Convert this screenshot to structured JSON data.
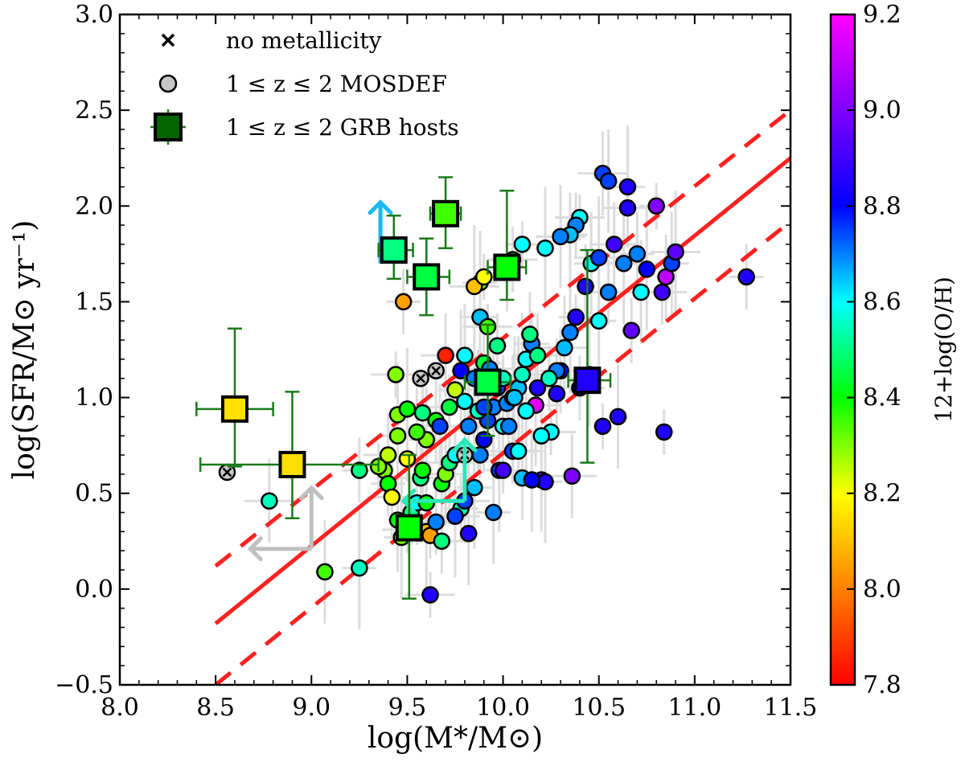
{
  "chart_data": {
    "type": "scatter",
    "xlabel": "log(M*/M⊙)",
    "ylabel": "log(SFR/M⊙ yr⁻¹)",
    "xlim": [
      8.0,
      11.5
    ],
    "ylim": [
      -0.5,
      3.0
    ],
    "xticks": [
      "8.0",
      "8.5",
      "9.0",
      "9.5",
      "10.0",
      "10.5",
      "11.0",
      "11.5"
    ],
    "yticks": [
      "−0.5",
      "0.0",
      "0.5",
      "1.0",
      "1.5",
      "2.0",
      "2.5",
      "3.0"
    ],
    "colorbar": {
      "label": "12+log(O/H)",
      "range": [
        7.8,
        9.2
      ],
      "ticks": [
        "7.8",
        "8.0",
        "8.2",
        "8.4",
        "8.6",
        "8.8",
        "9.0",
        "9.2"
      ],
      "colormap": [
        "#ff0000",
        "#ff8000",
        "#ffff00",
        "#00ff00",
        "#00ffff",
        "#0000ff",
        "#8000ff",
        "#ff00ff"
      ]
    },
    "legend": {
      "placement": "top-left",
      "entries": [
        {
          "marker": "x",
          "label": "no metallicity"
        },
        {
          "marker": "circle",
          "label": "1 ≤ z ≤ 2 MOSDEF"
        },
        {
          "marker": "square",
          "label": "1 ≤ z ≤ 2 GRB hosts"
        }
      ]
    },
    "lines": {
      "main_sequence": {
        "x": [
          8.5,
          11.5
        ],
        "y": [
          -0.18,
          2.25
        ],
        "color": "#ff2020",
        "style": "solid"
      },
      "upper_scatter": {
        "x": [
          8.5,
          11.5
        ],
        "y": [
          0.12,
          2.5
        ],
        "color": "#ff2020",
        "style": "dashed"
      },
      "lower_scatter": {
        "x": [
          8.5,
          11.5
        ],
        "y": [
          -0.5,
          1.92
        ],
        "color": "#ff2020",
        "style": "dashed"
      }
    },
    "mosdef_points": [
      [
        9.38,
        0.62,
        8.3
      ],
      [
        9.4,
        0.55,
        8.4
      ],
      [
        9.42,
        0.48,
        8.2
      ],
      [
        9.45,
        0.36,
        8.4
      ],
      [
        9.47,
        0.27,
        8.3
      ],
      [
        9.5,
        0.31,
        8.3
      ],
      [
        9.52,
        0.4,
        8.5
      ],
      [
        9.55,
        0.45,
        8.6
      ],
      [
        9.57,
        0.58,
        8.5
      ],
      [
        9.6,
        0.3,
        8.1
      ],
      [
        9.62,
        0.28,
        8.05
      ],
      [
        9.65,
        0.35,
        8.7
      ],
      [
        9.68,
        0.55,
        8.4
      ],
      [
        9.7,
        0.6,
        8.3
      ],
      [
        9.72,
        0.66,
        8.5
      ],
      [
        9.75,
        0.7,
        8.6
      ],
      [
        9.78,
        0.42,
        8.55
      ],
      [
        9.8,
        0.46,
        8.75
      ],
      [
        9.82,
        0.29,
        8.85
      ],
      [
        9.85,
        0.53,
        8.65
      ],
      [
        9.88,
        0.7,
        8.7
      ],
      [
        9.9,
        0.78,
        8.8
      ],
      [
        9.92,
        0.88,
        8.75
      ],
      [
        9.95,
        0.95,
        8.7
      ],
      [
        9.98,
        0.62,
        8.75
      ],
      [
        10.0,
        0.85,
        8.6
      ],
      [
        10.02,
        0.97,
        8.7
      ],
      [
        10.05,
        1.0,
        8.8
      ],
      [
        10.08,
        1.05,
        8.65
      ],
      [
        10.1,
        1.12,
        8.55
      ],
      [
        10.12,
        1.2,
        8.6
      ],
      [
        10.15,
        1.28,
        8.7
      ],
      [
        10.18,
        1.22,
        8.5
      ],
      [
        10.2,
        0.57,
        8.95
      ],
      [
        10.22,
        0.56,
        8.85
      ],
      [
        10.25,
        0.82,
        8.6
      ],
      [
        10.28,
        1.02,
        8.85
      ],
      [
        10.3,
        1.14,
        8.8
      ],
      [
        10.32,
        1.26,
        8.65
      ],
      [
        10.35,
        1.34,
        8.7
      ],
      [
        10.38,
        1.42,
        8.85
      ],
      [
        10.4,
        1.05,
        8.8
      ],
      [
        10.43,
        1.58,
        8.85
      ],
      [
        10.46,
        1.7,
        8.6
      ],
      [
        10.5,
        1.73,
        8.75
      ],
      [
        10.52,
        0.85,
        8.85
      ],
      [
        10.55,
        1.55,
        8.7
      ],
      [
        10.58,
        1.8,
        8.9
      ],
      [
        10.6,
        0.9,
        8.85
      ],
      [
        10.63,
        1.7,
        8.7
      ],
      [
        10.65,
        1.99,
        8.85
      ],
      [
        10.67,
        1.35,
        8.95
      ],
      [
        10.7,
        1.75,
        8.7
      ],
      [
        10.72,
        1.55,
        8.6
      ],
      [
        10.75,
        1.67,
        8.8
      ],
      [
        10.8,
        2.0,
        9.0
      ],
      [
        10.83,
        1.55,
        8.9
      ],
      [
        10.85,
        1.63,
        9.1
      ],
      [
        10.88,
        1.7,
        8.75
      ],
      [
        10.9,
        1.76,
        8.95
      ],
      [
        10.84,
        0.82,
        8.85
      ],
      [
        11.27,
        1.63,
        8.85
      ],
      [
        10.52,
        2.17,
        8.75
      ],
      [
        10.55,
        2.13,
        8.75
      ],
      [
        10.65,
        2.1,
        8.85
      ],
      [
        10.4,
        1.94,
        8.6
      ],
      [
        10.38,
        1.9,
        8.7
      ],
      [
        10.35,
        1.85,
        8.65
      ],
      [
        10.3,
        1.84,
        8.7
      ],
      [
        10.22,
        1.78,
        8.6
      ],
      [
        10.1,
        1.8,
        8.6
      ],
      [
        10.05,
        1.72,
        8.45
      ],
      [
        10.02,
        1.67,
        8.55
      ],
      [
        9.88,
        1.6,
        8.3
      ],
      [
        9.85,
        1.58,
        8.1
      ],
      [
        9.9,
        1.63,
        8.2
      ],
      [
        9.48,
        1.5,
        8.05
      ],
      [
        9.7,
        1.22,
        7.85
      ],
      [
        9.8,
        1.22,
        8.6
      ],
      [
        9.88,
        1.42,
        8.65
      ],
      [
        9.92,
        1.37,
        8.35
      ],
      [
        9.97,
        1.27,
        8.5
      ],
      [
        9.9,
        1.18,
        8.45
      ],
      [
        9.85,
        1.1,
        8.7
      ],
      [
        9.78,
        1.14,
        8.8
      ],
      [
        9.75,
        1.04,
        8.25
      ],
      [
        9.72,
        0.95,
        8.45
      ],
      [
        9.65,
        0.88,
        8.4
      ],
      [
        9.6,
        0.78,
        8.3
      ],
      [
        9.55,
        0.82,
        8.35
      ],
      [
        9.5,
        0.68,
        8.2
      ],
      [
        9.45,
        0.8,
        8.3
      ],
      [
        9.4,
        0.7,
        8.25
      ],
      [
        9.45,
        0.91,
        8.3
      ],
      [
        9.5,
        0.94,
        8.4
      ],
      [
        9.44,
        1.12,
        8.3
      ],
      [
        9.58,
        0.92,
        8.5
      ],
      [
        9.67,
        0.85,
        8.75
      ],
      [
        9.82,
        0.85,
        8.7
      ],
      [
        9.87,
        0.93,
        8.55
      ],
      [
        10.0,
        0.62,
        8.9
      ],
      [
        10.05,
        0.72,
        8.75
      ],
      [
        10.1,
        0.58,
        8.65
      ],
      [
        10.15,
        0.57,
        8.8
      ],
      [
        10.17,
        0.96,
        9.15
      ],
      [
        10.2,
        0.8,
        8.6
      ],
      [
        10.28,
        1.14,
        8.7
      ],
      [
        10.36,
        0.59,
        9.0
      ],
      [
        10.45,
        1.12,
        8.75
      ],
      [
        10.5,
        1.4,
        8.6
      ],
      [
        10.08,
        0.72,
        8.6
      ],
      [
        10.03,
        0.85,
        8.7
      ],
      [
        9.97,
        1.05,
        8.75
      ],
      [
        9.93,
        1.15,
        8.7
      ],
      [
        10.12,
        0.93,
        8.6
      ],
      [
        10.18,
        1.05,
        8.85
      ],
      [
        10.24,
        1.1,
        8.55
      ],
      [
        10.14,
        1.33,
        8.5
      ],
      [
        9.95,
        0.4,
        8.7
      ],
      [
        9.75,
        0.38,
        8.75
      ],
      [
        9.35,
        0.64,
        8.3
      ],
      [
        9.25,
        0.62,
        8.5
      ],
      [
        8.78,
        0.46,
        8.55
      ],
      [
        9.07,
        0.09,
        8.35
      ],
      [
        9.25,
        0.11,
        8.55
      ],
      [
        9.62,
        -0.03,
        8.85
      ],
      [
        9.58,
        0.62,
        8.4
      ],
      [
        9.8,
        0.98,
        8.6
      ],
      [
        9.9,
        0.95,
        8.75
      ],
      [
        10.06,
        1.0,
        8.65
      ],
      [
        10.0,
        1.1,
        8.55
      ],
      [
        9.68,
        0.25,
        8.5
      ],
      [
        9.6,
        0.45,
        8.4
      ]
    ],
    "mosdef_no_metallicity": [
      [
        8.56,
        0.61
      ],
      [
        9.57,
        1.1
      ],
      [
        9.65,
        1.14
      ],
      [
        9.8,
        0.7
      ]
    ],
    "grb_hosts": [
      {
        "x": 8.6,
        "y": 0.94,
        "z_metal": 8.15,
        "xerr": [
          0.2,
          0.2
        ],
        "yerr": [
          0.3,
          0.42
        ]
      },
      {
        "x": 8.9,
        "y": 0.65,
        "z_metal": 8.15,
        "xerr": [
          0.48,
          0.45
        ],
        "yerr": [
          0.28,
          0.38
        ]
      },
      {
        "x": 9.43,
        "y": 1.77,
        "z_metal": 8.5,
        "xerr": [
          0.08,
          0.1
        ],
        "yerr": [
          0.15,
          0.18
        ]
      },
      {
        "x": 9.6,
        "y": 1.63,
        "z_metal": 8.45,
        "xerr": [
          0.1,
          0.12
        ],
        "yerr": [
          0.2,
          0.2
        ]
      },
      {
        "x": 9.7,
        "y": 1.96,
        "z_metal": 8.35,
        "xerr": [
          0.08,
          0.08
        ],
        "yerr": [
          0.18,
          0.19
        ]
      },
      {
        "x": 10.02,
        "y": 1.68,
        "z_metal": 8.4,
        "xerr": [
          0.1,
          0.1
        ],
        "yerr": [
          0.17,
          0.4
        ]
      },
      {
        "x": 9.92,
        "y": 1.08,
        "z_metal": 8.45,
        "xerr": [
          0.12,
          0.12
        ],
        "yerr": [
          0.28,
          0.3
        ]
      },
      {
        "x": 9.51,
        "y": 0.32,
        "z_metal": 8.4,
        "xerr": [
          0.06,
          0.06
        ],
        "yerr": [
          0.37,
          0.38
        ]
      },
      {
        "x": 10.44,
        "y": 1.09,
        "z_metal": 8.85,
        "xerr": [
          0.1,
          0.12
        ],
        "yerr": [
          0.43,
          0.68
        ]
      }
    ],
    "limits": [
      {
        "x": 9.36,
        "y": 1.7,
        "type": "lower_y",
        "color": "#1ab8f0"
      },
      {
        "x": 9.8,
        "y": 0.46,
        "type": "lower_y_upper_x",
        "color": "#2be8b8"
      },
      {
        "x": 9.0,
        "y": 0.21,
        "type": "lower_y_upper_x",
        "color": "#c0c0c0"
      }
    ]
  }
}
